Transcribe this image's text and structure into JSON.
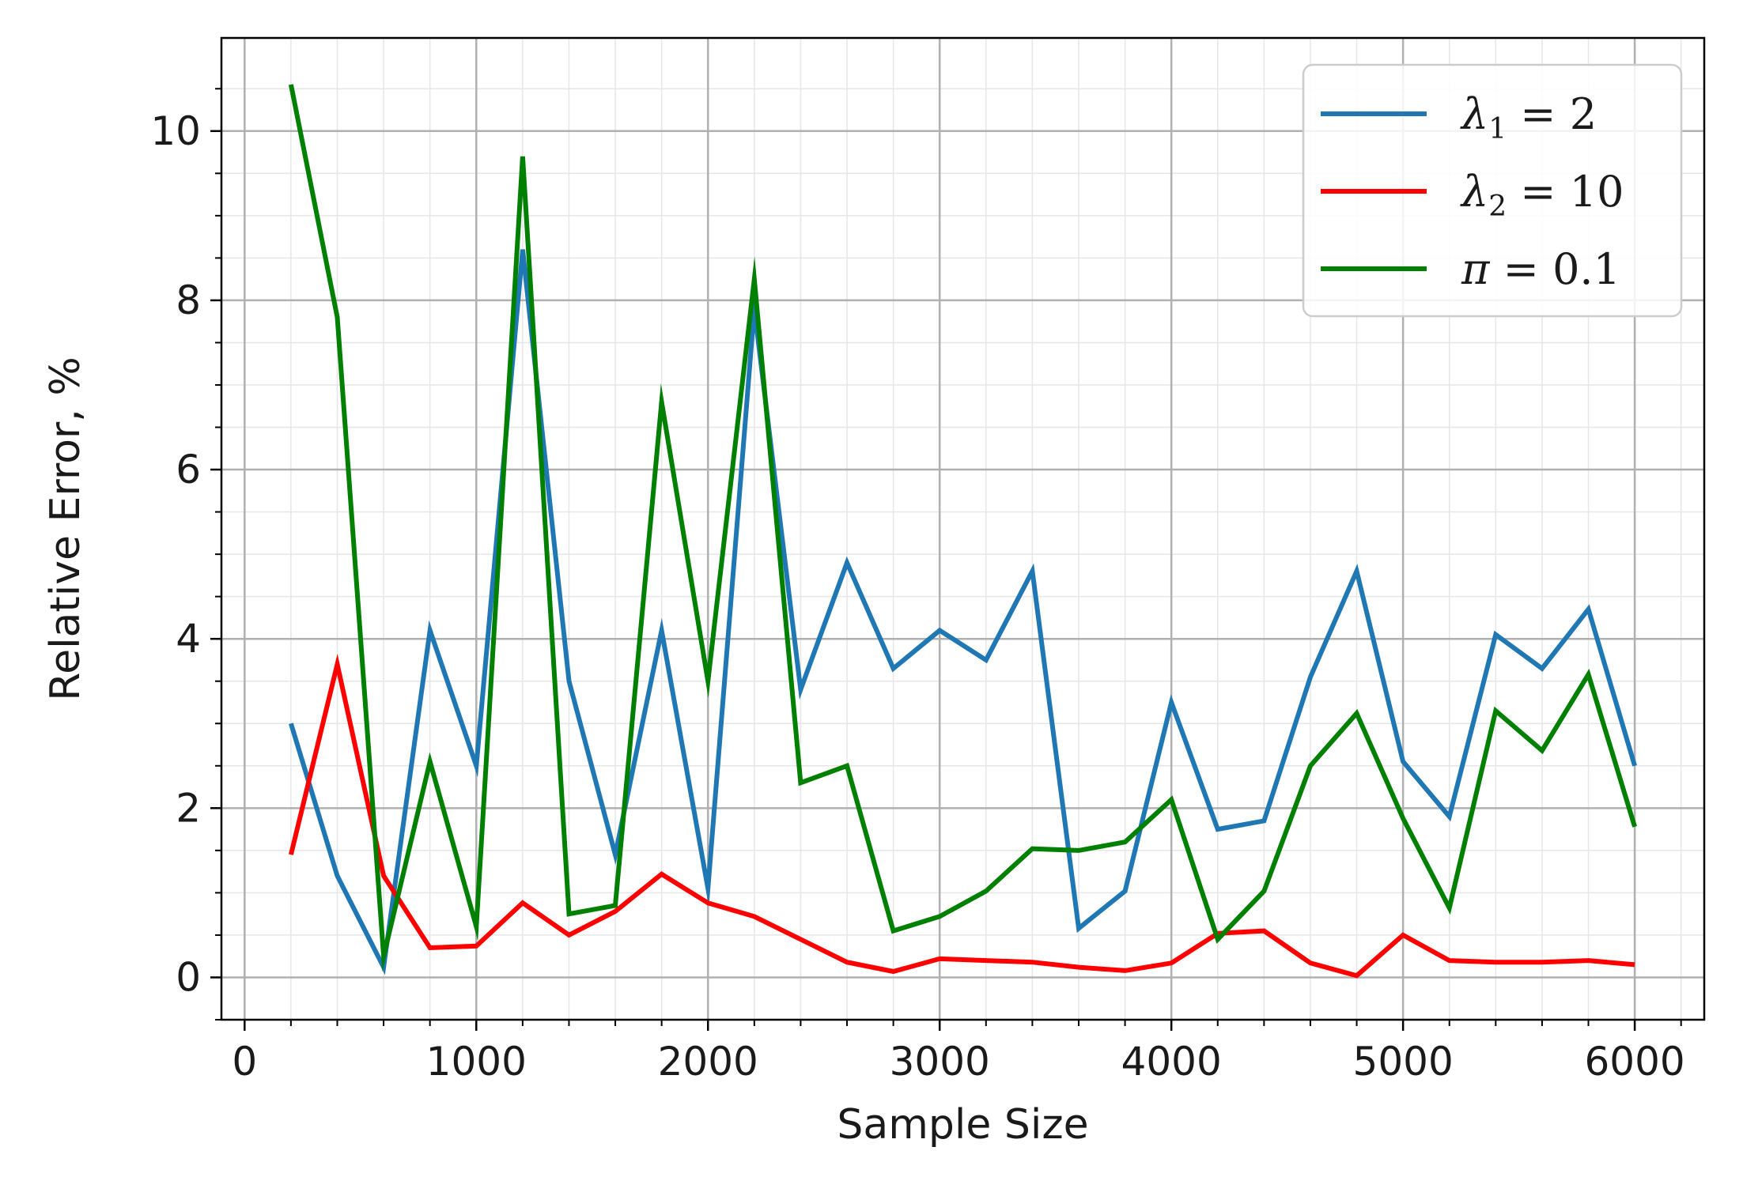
{
  "chart_data": {
    "type": "line",
    "title": "",
    "xlabel": "Sample Size",
    "ylabel": "Relative Error, %",
    "xlim": [
      -100,
      6300
    ],
    "ylim": [
      -0.5,
      11.1
    ],
    "x_ticks": [
      0,
      1000,
      2000,
      3000,
      4000,
      5000,
      6000
    ],
    "x_tick_labels": [
      "0",
      "1000",
      "2000",
      "3000",
      "4000",
      "5000",
      "6000"
    ],
    "y_ticks": [
      0,
      2,
      4,
      6,
      8,
      10
    ],
    "y_tick_labels": [
      "0",
      "2",
      "4",
      "6",
      "8",
      "10"
    ],
    "grid": true,
    "minor_grid": true,
    "legend_position": "top-right",
    "x": [
      200,
      400,
      600,
      800,
      1000,
      1200,
      1400,
      1600,
      1800,
      2000,
      2200,
      2400,
      2600,
      2800,
      3000,
      3200,
      3400,
      3600,
      3800,
      4000,
      4200,
      4400,
      4600,
      4800,
      5000,
      5200,
      5400,
      5600,
      5800,
      6000
    ],
    "series": [
      {
        "legend_symbol": "λ",
        "legend_subscript": "1",
        "legend_rest": " = 2",
        "color": "#1f77b4",
        "values": [
          3.0,
          1.2,
          0.12,
          4.1,
          2.5,
          8.6,
          3.5,
          1.45,
          4.1,
          1.05,
          7.9,
          3.4,
          4.9,
          3.65,
          4.1,
          3.75,
          4.8,
          0.58,
          1.02,
          3.25,
          1.75,
          1.85,
          3.55,
          4.8,
          2.55,
          1.9,
          4.05,
          3.65,
          4.35,
          2.5
        ]
      },
      {
        "legend_symbol": "λ",
        "legend_subscript": "2",
        "legend_rest": " = 10",
        "color": "#ff0000",
        "values": [
          1.45,
          3.7,
          1.2,
          0.35,
          0.37,
          0.88,
          0.5,
          0.78,
          1.22,
          0.88,
          0.72,
          0.45,
          0.18,
          0.07,
          0.22,
          0.2,
          0.18,
          0.12,
          0.08,
          0.17,
          0.52,
          0.55,
          0.17,
          0.02,
          0.5,
          0.2,
          0.18,
          0.18,
          0.2,
          0.15
        ]
      },
      {
        "legend_symbol": "π",
        "legend_subscript": "",
        "legend_rest": " = 0.1",
        "color": "#008000",
        "values": [
          10.55,
          7.8,
          0.25,
          2.55,
          0.6,
          9.7,
          0.75,
          0.85,
          6.8,
          3.5,
          8.25,
          2.3,
          2.5,
          0.55,
          0.72,
          1.02,
          1.52,
          1.5,
          1.6,
          2.1,
          0.45,
          1.02,
          2.5,
          3.12,
          1.88,
          0.82,
          3.15,
          2.68,
          3.58,
          1.78
        ]
      }
    ]
  }
}
